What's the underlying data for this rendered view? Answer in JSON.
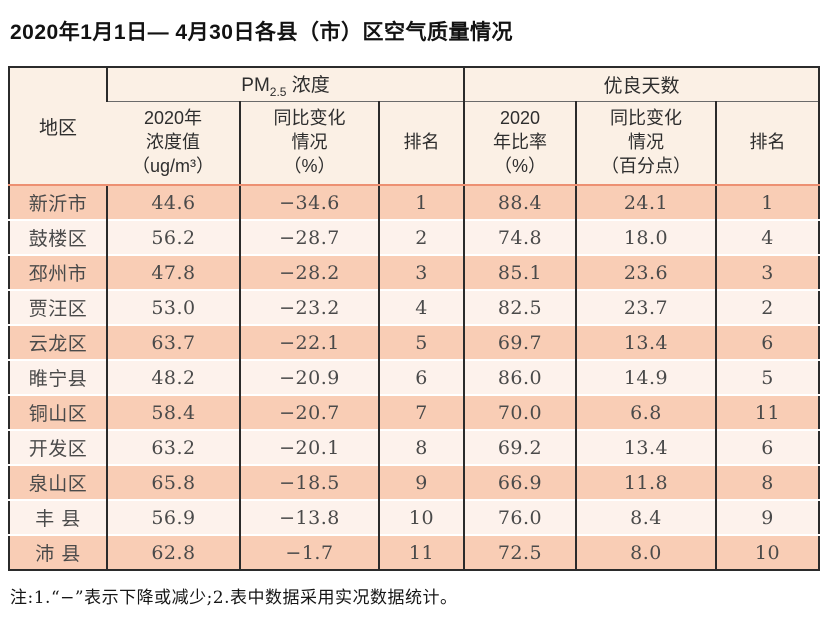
{
  "title": "2020年1月1日— 4月30日各县（市）区空气质量情况",
  "note": "注:1.“−”表示下降或减少;2.表中数据采用实况数据统计。",
  "colors": {
    "border_dark": "#2b2b2b",
    "row_salmon": "#f9cdb5",
    "row_light": "#fdf2ec",
    "header_bg": "#fbf0e5",
    "divider_red": "#ed9072"
  },
  "table": {
    "header": {
      "region": "地区",
      "pm25_group": {
        "prefix": "PM",
        "sub": "2.5",
        "suffix": " 浓度"
      },
      "days_group": "优良天数",
      "sub": [
        "2020年\n浓度值\n（ug/m³）",
        "同比变化\n情况\n（%）",
        "排名",
        "2020\n年比率\n（%）",
        "同比变化\n情况\n（百分点）",
        "排名"
      ]
    },
    "rows": [
      [
        "新沂市",
        "44.6",
        "−34.6",
        "1",
        "88.4",
        "24.1",
        "1"
      ],
      [
        "鼓楼区",
        "56.2",
        "−28.7",
        "2",
        "74.8",
        "18.0",
        "4"
      ],
      [
        "邳州市",
        "47.8",
        "−28.2",
        "3",
        "85.1",
        "23.6",
        "3"
      ],
      [
        "贾汪区",
        "53.0",
        "−23.2",
        "4",
        "82.5",
        "23.7",
        "2"
      ],
      [
        "云龙区",
        "63.7",
        "−22.1",
        "5",
        "69.7",
        "13.4",
        "6"
      ],
      [
        "睢宁县",
        "48.2",
        "−20.9",
        "6",
        "86.0",
        "14.9",
        "5"
      ],
      [
        "铜山区",
        "58.4",
        "−20.7",
        "7",
        "70.0",
        "6.8",
        "11"
      ],
      [
        "开发区",
        "63.2",
        "−20.1",
        "8",
        "69.2",
        "13.4",
        "6"
      ],
      [
        "泉山区",
        "65.8",
        "−18.5",
        "9",
        "66.9",
        "11.8",
        "8"
      ],
      [
        "丰 县",
        "56.9",
        "−13.8",
        "10",
        "76.0",
        "8.4",
        "9"
      ],
      [
        "沛 县",
        "62.8",
        "−1.7",
        "11",
        "72.5",
        "8.0",
        "10"
      ]
    ]
  }
}
